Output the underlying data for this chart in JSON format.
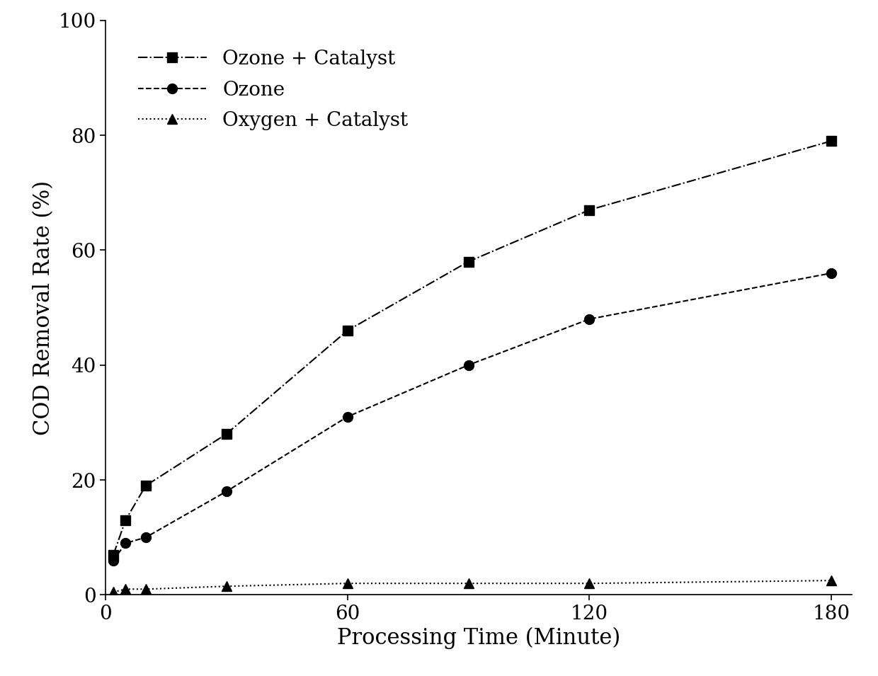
{
  "ozone_catalyst_x": [
    2,
    5,
    10,
    30,
    60,
    90,
    120,
    180
  ],
  "ozone_catalyst_y": [
    7,
    13,
    19,
    28,
    46,
    58,
    67,
    79
  ],
  "ozone_x": [
    2,
    5,
    10,
    30,
    60,
    90,
    120,
    180
  ],
  "ozone_y": [
    6,
    9,
    10,
    18,
    31,
    40,
    48,
    56
  ],
  "oxygen_catalyst_x": [
    2,
    5,
    10,
    30,
    60,
    90,
    120,
    180
  ],
  "oxygen_catalyst_y": [
    0.5,
    1,
    1,
    1.5,
    2,
    2,
    2,
    2.5
  ],
  "xlabel": "Processing Time (Minute)",
  "ylabel": "COD Removal Rate (%)",
  "xlim": [
    0,
    185
  ],
  "ylim": [
    0,
    100
  ],
  "xticks": [
    0,
    60,
    120,
    180
  ],
  "yticks": [
    0,
    20,
    40,
    60,
    80,
    100
  ],
  "legend_labels": [
    "Ozone + Catalyst",
    "Ozone",
    "Oxygen + Catalyst"
  ],
  "line_color": "#000000",
  "background_color": "#ffffff",
  "xlabel_fontsize": 22,
  "ylabel_fontsize": 22,
  "tick_fontsize": 20,
  "legend_fontsize": 20,
  "linewidth": 1.5,
  "markersize": 10
}
